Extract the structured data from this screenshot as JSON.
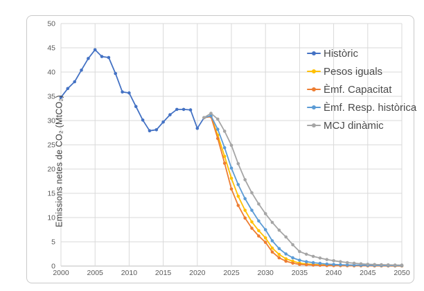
{
  "page": {
    "background": "#ffffff"
  },
  "chart_frame": {
    "border_color": "#c9c9c9",
    "background": "#ffffff"
  },
  "chart_data": {
    "type": "line",
    "title": "",
    "xlabel": "",
    "ylabel": "Emissions netes de CO₂ (MtCO₂)",
    "xlim": [
      2000,
      2050
    ],
    "ylim": [
      0,
      50
    ],
    "x_ticks": [
      2000,
      2005,
      2010,
      2015,
      2020,
      2025,
      2030,
      2035,
      2040,
      2045,
      2050
    ],
    "y_ticks": [
      0,
      5,
      10,
      15,
      20,
      25,
      30,
      35,
      40,
      45,
      50
    ],
    "grid": true,
    "gridline_color": "#d9d9d9",
    "axis_line_color": "#bfbfbf",
    "tick_label_color": "#595959",
    "legend_position": "top-right-inside",
    "marker": "circle",
    "series": [
      {
        "name": "Històric",
        "color": "#4472C4",
        "x": [
          2000,
          2001,
          2002,
          2003,
          2004,
          2005,
          2006,
          2007,
          2008,
          2009,
          2010,
          2011,
          2012,
          2013,
          2014,
          2015,
          2016,
          2017,
          2018,
          2019,
          2020,
          2021
        ],
        "y": [
          34.8,
          36.6,
          38.0,
          40.4,
          42.8,
          44.6,
          43.2,
          43.0,
          39.7,
          35.9,
          35.7,
          32.9,
          30.1,
          27.9,
          28.1,
          29.7,
          31.2,
          32.3,
          32.3,
          32.2,
          28.4,
          30.6
        ]
      },
      {
        "name": "Pesos iguals",
        "color": "#FFC000",
        "x": [
          2021,
          2022,
          2023,
          2024,
          2025,
          2026,
          2027,
          2028,
          2029,
          2030,
          2031,
          2032,
          2033,
          2034,
          2035,
          2036,
          2037,
          2038,
          2039,
          2040,
          2041,
          2042,
          2043,
          2044,
          2045,
          2046,
          2047,
          2048,
          2049,
          2050
        ],
        "y": [
          30.6,
          30.9,
          27.0,
          22.6,
          18.1,
          14.4,
          11.5,
          9.1,
          7.3,
          5.8,
          3.7,
          2.4,
          1.5,
          1.0,
          0.6,
          0.45,
          0.35,
          0.27,
          0.2,
          0.15,
          0.12,
          0.1,
          0.09,
          0.08,
          0.07,
          0.06,
          0.05,
          0.05,
          0.04,
          0.04
        ]
      },
      {
        "name": "Èmf. Capacitat",
        "color": "#ED7D31",
        "x": [
          2021,
          2022,
          2023,
          2024,
          2025,
          2026,
          2027,
          2028,
          2029,
          2030,
          2031,
          2032,
          2033,
          2034,
          2035,
          2036,
          2037,
          2038,
          2039,
          2040,
          2041,
          2042,
          2043,
          2044,
          2045,
          2046,
          2047,
          2048,
          2049,
          2050
        ],
        "y": [
          30.6,
          30.8,
          26.3,
          21.2,
          15.9,
          12.5,
          9.9,
          7.8,
          6.2,
          4.9,
          2.9,
          1.7,
          1.0,
          0.6,
          0.35,
          0.27,
          0.2,
          0.15,
          0.12,
          0.09,
          0.08,
          0.07,
          0.06,
          0.05,
          0.05,
          0.04,
          0.04,
          0.03,
          0.03,
          0.03
        ]
      },
      {
        "name": "Èmf. Resp. històrica",
        "color": "#5B9BD5",
        "x": [
          2021,
          2022,
          2023,
          2024,
          2025,
          2026,
          2027,
          2028,
          2029,
          2030,
          2031,
          2032,
          2033,
          2034,
          2035,
          2036,
          2037,
          2038,
          2039,
          2040,
          2041,
          2042,
          2043,
          2044,
          2045,
          2046,
          2047,
          2048,
          2049,
          2050
        ],
        "y": [
          30.6,
          31.0,
          28.2,
          24.4,
          20.2,
          16.8,
          13.9,
          11.5,
          9.3,
          7.5,
          5.2,
          3.6,
          2.5,
          1.7,
          1.2,
          0.9,
          0.7,
          0.55,
          0.42,
          0.33,
          0.27,
          0.23,
          0.2,
          0.18,
          0.16,
          0.14,
          0.13,
          0.12,
          0.11,
          0.1
        ]
      },
      {
        "name": "MCJ dinàmic",
        "color": "#A5A5A5",
        "x": [
          2021,
          2022,
          2023,
          2024,
          2025,
          2026,
          2027,
          2028,
          2029,
          2030,
          2031,
          2032,
          2033,
          2034,
          2035,
          2036,
          2037,
          2038,
          2039,
          2040,
          2041,
          2042,
          2043,
          2044,
          2045,
          2046,
          2047,
          2048,
          2049,
          2050
        ],
        "y": [
          30.6,
          31.5,
          30.3,
          27.8,
          24.9,
          21.1,
          17.8,
          15.1,
          12.8,
          10.8,
          9.0,
          7.4,
          6.0,
          4.4,
          3.0,
          2.45,
          2.0,
          1.65,
          1.35,
          1.1,
          0.9,
          0.72,
          0.58,
          0.46,
          0.37,
          0.32,
          0.28,
          0.25,
          0.22,
          0.2
        ]
      }
    ]
  }
}
